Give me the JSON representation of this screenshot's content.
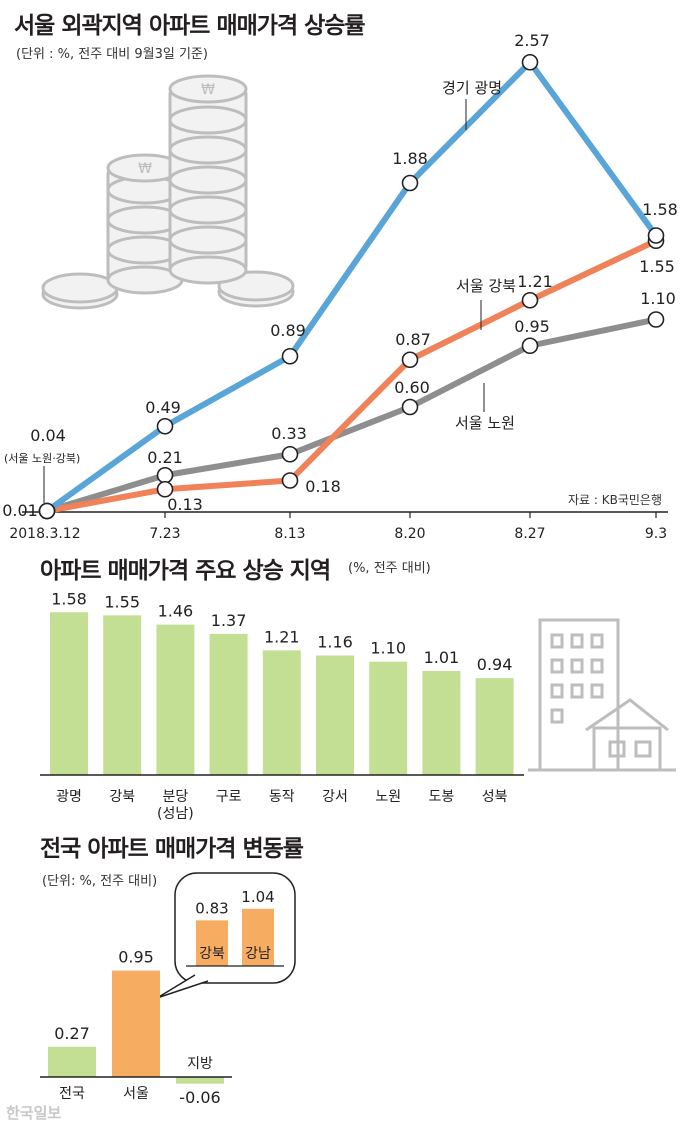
{
  "charts": [
    {
      "title": "서울 외곽지역 아파트 매매가격 상승률",
      "subtitle": "(단위 : %, 전주 대비 9월3일 기준)",
      "source": "자료 : KB국민은행",
      "note_start": "(서울 노원·강북)",
      "line_labels": {
        "gyeonggi": "경기 광명",
        "gangbuk": "서울 강북",
        "nowon": "서울 노원"
      }
    },
    {
      "title": "아파트 매매가격 주요 상승 지역",
      "subtitle": "(%, 전주 대비)"
    },
    {
      "title": "전국 아파트 매매가격 변동률",
      "subtitle": "(단위: %, 전주 대비)"
    }
  ],
  "watermark": "한국일보",
  "colors": {
    "blue": "#5aa5d8",
    "orange": "#ef8259",
    "gray": "#8e8e8e",
    "green": "#c3df94",
    "peach": "#f7ad61"
  },
  "chart_data": [
    {
      "type": "line",
      "title": "서울 외곽지역 아파트 매매가격 상승률",
      "x": [
        "2018.3.12",
        "7.23",
        "8.13",
        "8.20",
        "8.27",
        "9.3"
      ],
      "series": [
        {
          "name": "경기 광명",
          "values": [
            0.01,
            0.49,
            0.89,
            1.88,
            2.57,
            1.58
          ]
        },
        {
          "name": "서울 강북",
          "values": [
            0.04,
            0.13,
            0.18,
            0.87,
            1.21,
            1.55
          ]
        },
        {
          "name": "서울 노원",
          "values": [
            0.04,
            0.21,
            0.33,
            0.6,
            0.95,
            1.1
          ]
        }
      ],
      "start_labels": [
        "0.01",
        "0.04"
      ],
      "value_labels": {
        "gyeonggi": [
          "0.49",
          "0.89",
          "1.88",
          "2.57",
          "1.58"
        ],
        "gangbuk": [
          "0.13",
          "0.18",
          "0.87",
          "1.21",
          "1.55"
        ],
        "nowon": [
          "0.21",
          "0.33",
          "0.60",
          "0.95",
          "1.10"
        ]
      },
      "ylim": [
        0,
        2.6
      ]
    },
    {
      "type": "bar",
      "title": "아파트 매매가격 주요 상승 지역",
      "categories": [
        "광명",
        "강북",
        "분당\n(성남)",
        "구로",
        "동작",
        "강서",
        "노원",
        "도봉",
        "성북"
      ],
      "values": [
        1.58,
        1.55,
        1.46,
        1.37,
        1.21,
        1.16,
        1.1,
        1.01,
        0.94
      ],
      "value_labels": [
        "1.58",
        "1.55",
        "1.46",
        "1.37",
        "1.21",
        "1.16",
        "1.10",
        "1.01",
        "0.94"
      ]
    },
    {
      "type": "bar",
      "title": "전국 아파트 매매가격 변동률",
      "categories": [
        "전국",
        "서울",
        "지방"
      ],
      "values": [
        0.27,
        0.95,
        -0.06
      ],
      "value_labels": [
        "0.27",
        "0.95",
        "-0.06"
      ],
      "inset": {
        "categories": [
          "강북",
          "강남"
        ],
        "values": [
          0.83,
          1.04
        ],
        "value_labels": [
          "0.83",
          "1.04"
        ]
      }
    }
  ]
}
